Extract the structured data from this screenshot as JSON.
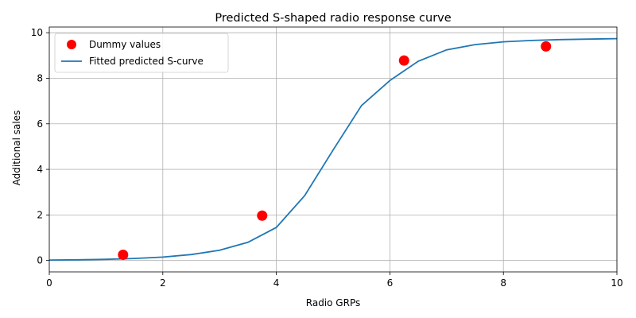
{
  "chart_data": {
    "type": "scatter",
    "title": "Predicted S-shaped radio response curve",
    "xlabel": "Radio GRPs",
    "ylabel": "Additional sales",
    "xlim": [
      0,
      10
    ],
    "ylim": [
      -0.5,
      10.25
    ],
    "xticks": [
      0,
      2,
      4,
      6,
      8,
      10
    ],
    "yticks": [
      0,
      2,
      4,
      6,
      8,
      10
    ],
    "grid": true,
    "legend_position": "top-left",
    "series": [
      {
        "name": "Dummy values",
        "kind": "scatter",
        "color": "#ff0000",
        "x": [
          1.3,
          3.75,
          6.25,
          8.75
        ],
        "y": [
          0.25,
          1.97,
          8.78,
          9.4
        ]
      },
      {
        "name": "Fitted predicted S-curve",
        "kind": "line",
        "color": "#1f77b4",
        "x": [
          0,
          0.5,
          1,
          1.5,
          2,
          2.5,
          3,
          3.5,
          4,
          4.5,
          5,
          5.5,
          6,
          6.5,
          7,
          7.5,
          8,
          8.5,
          9,
          9.5,
          10
        ],
        "y": [
          0.02,
          0.03,
          0.05,
          0.09,
          0.15,
          0.26,
          0.45,
          0.8,
          1.45,
          2.85,
          4.85,
          6.8,
          7.9,
          8.75,
          9.25,
          9.48,
          9.6,
          9.66,
          9.7,
          9.72,
          9.74
        ]
      }
    ]
  }
}
